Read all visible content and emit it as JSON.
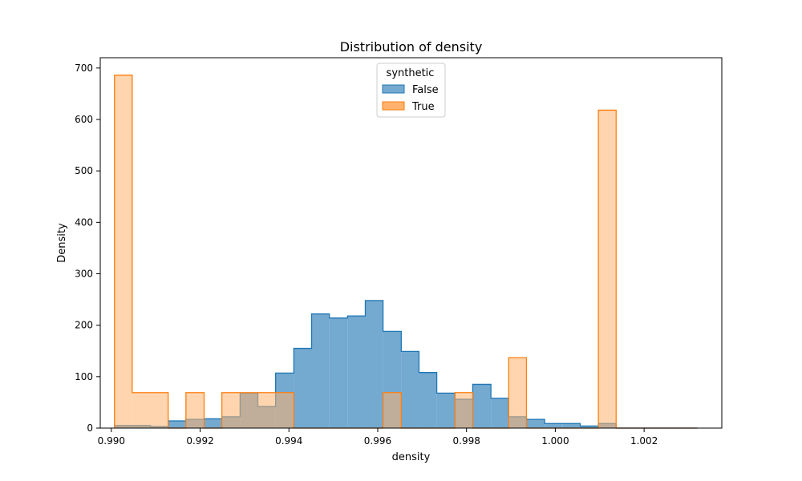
{
  "chart_data": {
    "type": "histogram",
    "title": "Distribution of density",
    "xlabel": "density",
    "ylabel": "Density",
    "xlim": [
      0.98975,
      1.00375
    ],
    "ylim": [
      0,
      720
    ],
    "x_ticks": [
      0.99,
      0.992,
      0.994,
      0.996,
      0.998,
      1.0,
      1.002
    ],
    "x_tick_labels": [
      "0.990",
      "0.992",
      "0.994",
      "0.996",
      "0.998",
      "1.000",
      "1.002"
    ],
    "y_ticks": [
      0,
      100,
      200,
      300,
      400,
      500,
      600,
      700
    ],
    "y_tick_labels": [
      "0",
      "100",
      "200",
      "300",
      "400",
      "500",
      "600",
      "700"
    ],
    "grid": false,
    "legend": {
      "title": "synthetic",
      "placement": "top-center",
      "entries": [
        "False",
        "True"
      ]
    },
    "bin_edges": [
      0.99007,
      0.99047,
      0.99088,
      0.99128,
      0.99168,
      0.99209,
      0.99249,
      0.9929,
      0.9933,
      0.9937,
      0.99411,
      0.99451,
      0.99491,
      0.99532,
      0.99572,
      0.99612,
      0.99653,
      0.99693,
      0.99733,
      0.99774,
      0.99814,
      0.99855,
      0.99895,
      0.99935,
      0.99976,
      1.00016,
      1.00056,
      1.00097,
      1.00137,
      1.00178,
      1.00218,
      1.00258,
      1.00299,
      1.0032
    ],
    "series": [
      {
        "name": "False",
        "color": "#1f77b4",
        "fill": "#74a9d0",
        "values": [
          5,
          5,
          3,
          14,
          17,
          18,
          22,
          68,
          42,
          107,
          155,
          222,
          214,
          218,
          248,
          188,
          149,
          108,
          68,
          56,
          85,
          58,
          22,
          17,
          9,
          9,
          4,
          9,
          0,
          0,
          0,
          0,
          0
        ]
      },
      {
        "name": "True",
        "color": "#ff7f0e",
        "fill": "#ffb26e",
        "values": [
          686,
          69,
          69,
          0,
          69,
          0,
          69,
          69,
          69,
          69,
          0,
          0,
          0,
          0,
          0,
          69,
          0,
          0,
          0,
          69,
          0,
          0,
          137,
          0,
          0,
          0,
          0,
          618,
          0,
          0,
          0,
          0,
          0
        ]
      }
    ]
  }
}
